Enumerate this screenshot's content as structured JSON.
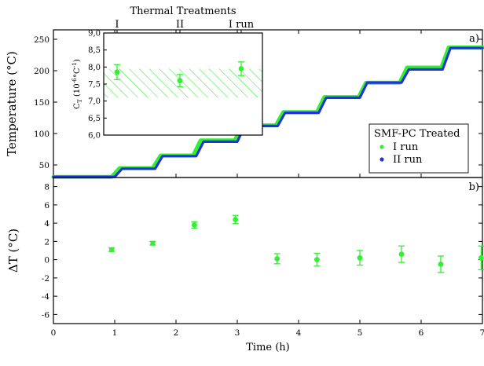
{
  "chart_data": [
    {
      "type": "line",
      "panel_label": "a)",
      "xlim": [
        0,
        7
      ],
      "ylim": [
        30,
        265
      ],
      "ylabel": "Temperature (°C)",
      "yticks": [
        50,
        100,
        150,
        200,
        250
      ],
      "legend": {
        "title": "SMF-PC Treated",
        "placement": "bottom-right",
        "entries": [
          "I run",
          "II run"
        ]
      },
      "series": [
        {
          "name": "I run",
          "color": "#33ee33",
          "x": [
            0,
            0.95,
            1.08,
            1.62,
            1.75,
            2.28,
            2.4,
            2.96,
            3.08,
            3.63,
            3.75,
            4.3,
            4.42,
            4.98,
            5.1,
            5.65,
            5.77,
            6.33,
            6.45,
            7.0
          ],
          "y": [
            31,
            31,
            45,
            45,
            65,
            65,
            89,
            89,
            113,
            113,
            134,
            134,
            158,
            158,
            181,
            181,
            205,
            205,
            237,
            237
          ]
        },
        {
          "name": "II run",
          "color": "#2233dd",
          "x": [
            0,
            1.0,
            1.12,
            1.66,
            1.78,
            2.33,
            2.45,
            3.0,
            3.12,
            3.66,
            3.78,
            4.33,
            4.45,
            5.0,
            5.12,
            5.68,
            5.8,
            6.35,
            6.48,
            7.0
          ],
          "y": [
            31,
            31,
            44,
            44,
            64,
            64,
            87,
            87,
            112,
            112,
            133,
            133,
            157,
            157,
            181,
            181,
            202,
            202,
            236,
            236
          ]
        }
      ]
    },
    {
      "type": "scatter",
      "title": "Thermal Treatments",
      "categories": [
        "I",
        "II",
        "I run"
      ],
      "values": [
        7.85,
        7.6,
        7.95
      ],
      "errors": [
        0.22,
        0.18,
        0.2
      ],
      "ylim": [
        6.0,
        9.0
      ],
      "yticks": [
        "6,0",
        "6,5",
        "7,0",
        "7,5",
        "8,0",
        "8,5",
        "9,0"
      ],
      "ylabel_main": "C",
      "ylabel_sub": "T",
      "ylabel_rest": " (10",
      "ylabel_exp": "-6",
      "ylabel_unit": "°C",
      "ylabel_exp2": "-1",
      "ylabel_close": ")",
      "band": [
        7.1,
        7.95
      ],
      "color": "#33ee33"
    },
    {
      "type": "scatter",
      "panel_label": "b)",
      "xlim": [
        0,
        7
      ],
      "ylim": [
        -7,
        9
      ],
      "xlabel": "Time (h)",
      "ylabel": "ΔT (°C)",
      "xticks": [
        0,
        1,
        2,
        3,
        4,
        5,
        6,
        7
      ],
      "yticks": [
        -6,
        -4,
        -2,
        0,
        2,
        4,
        6,
        8
      ],
      "color": "#33ee33",
      "x": [
        0.95,
        1.62,
        2.3,
        2.97,
        3.65,
        4.3,
        5.0,
        5.68,
        6.32,
        6.98
      ],
      "y": [
        1.1,
        1.8,
        3.8,
        4.4,
        0.1,
        0.0,
        0.2,
        0.6,
        -0.5,
        0.2
      ],
      "errors": [
        0.2,
        0.2,
        0.35,
        0.45,
        0.55,
        0.7,
        0.8,
        0.9,
        0.9,
        1.3
      ]
    }
  ]
}
